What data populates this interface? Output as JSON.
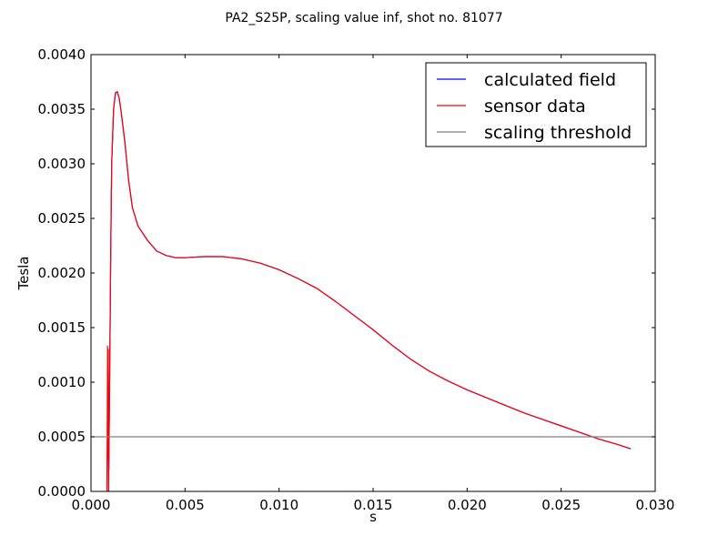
{
  "chart_data": {
    "type": "line",
    "title": "PA2_S25P, scaling value inf, shot no. 81077",
    "xlabel": "s",
    "ylabel": "Tesla",
    "xlim": [
      0.0,
      0.03
    ],
    "ylim": [
      0.0,
      0.004
    ],
    "x_ticks": [
      "0.000",
      "0.005",
      "0.010",
      "0.015",
      "0.020",
      "0.025",
      "0.030"
    ],
    "y_ticks": [
      "0.0000",
      "0.0005",
      "0.0010",
      "0.0015",
      "0.0020",
      "0.0025",
      "0.0030",
      "0.0035",
      "0.0040"
    ],
    "grid": false,
    "legend_position": "top-right",
    "series": [
      {
        "name": "calculated field",
        "color": "#0000ff",
        "x": [
          0.00085,
          0.0009,
          0.00095,
          0.001,
          0.00105,
          0.0011,
          0.0012,
          0.0013,
          0.0014,
          0.0015,
          0.0016,
          0.0018,
          0.002,
          0.0022,
          0.0025,
          0.003,
          0.0035,
          0.004,
          0.0045,
          0.005,
          0.006,
          0.007,
          0.008,
          0.009,
          0.01,
          0.011,
          0.012,
          0.013,
          0.014,
          0.015,
          0.016,
          0.017,
          0.018,
          0.019,
          0.02,
          0.021,
          0.022,
          0.023,
          0.024,
          0.025,
          0.026,
          0.027,
          0.028,
          0.0287
        ],
        "y": [
          0.0,
          0.0008,
          0.0002,
          0.0012,
          0.0022,
          0.003,
          0.0035,
          0.00365,
          0.00366,
          0.0036,
          0.00348,
          0.0032,
          0.00285,
          0.0026,
          0.00243,
          0.0023,
          0.0022,
          0.00216,
          0.00214,
          0.00214,
          0.00215,
          0.00215,
          0.00213,
          0.00209,
          0.00203,
          0.00195,
          0.00186,
          0.00174,
          0.00161,
          0.00148,
          0.00134,
          0.00121,
          0.0011,
          0.00101,
          0.00093,
          0.00086,
          0.00079,
          0.00072,
          0.00066,
          0.0006,
          0.00054,
          0.00048,
          0.00043,
          0.00039
        ]
      },
      {
        "name": "sensor data",
        "color": "#ff0000",
        "x": [
          0.00085,
          0.00088,
          0.0009,
          0.00092,
          0.00094,
          0.00096,
          0.001,
          0.00105,
          0.0011,
          0.0012,
          0.0013,
          0.0014,
          0.0015,
          0.0016,
          0.0018,
          0.002,
          0.0022,
          0.0025,
          0.003,
          0.0035,
          0.004,
          0.0045,
          0.005,
          0.006,
          0.007,
          0.008,
          0.009,
          0.01,
          0.011,
          0.012,
          0.013,
          0.014,
          0.015,
          0.016,
          0.017,
          0.018,
          0.019,
          0.02,
          0.021,
          0.022,
          0.023,
          0.024,
          0.025,
          0.026,
          0.027,
          0.028,
          0.0287
        ],
        "y": [
          0.0,
          0.00133,
          0.0003,
          0.0013,
          0.0,
          0.0005,
          0.0012,
          0.0022,
          0.003,
          0.0035,
          0.00365,
          0.00366,
          0.0036,
          0.00348,
          0.0032,
          0.00285,
          0.0026,
          0.00243,
          0.0023,
          0.0022,
          0.00216,
          0.00214,
          0.00214,
          0.00215,
          0.00215,
          0.00213,
          0.00209,
          0.00203,
          0.00195,
          0.00186,
          0.00174,
          0.00161,
          0.00148,
          0.00134,
          0.00121,
          0.0011,
          0.00101,
          0.00093,
          0.00086,
          0.00079,
          0.00072,
          0.00066,
          0.0006,
          0.00054,
          0.00048,
          0.00043,
          0.00039
        ]
      },
      {
        "name": "scaling threshold",
        "color": "#808080",
        "x": [
          0.0,
          0.03
        ],
        "y": [
          0.0005,
          0.0005
        ]
      }
    ]
  }
}
